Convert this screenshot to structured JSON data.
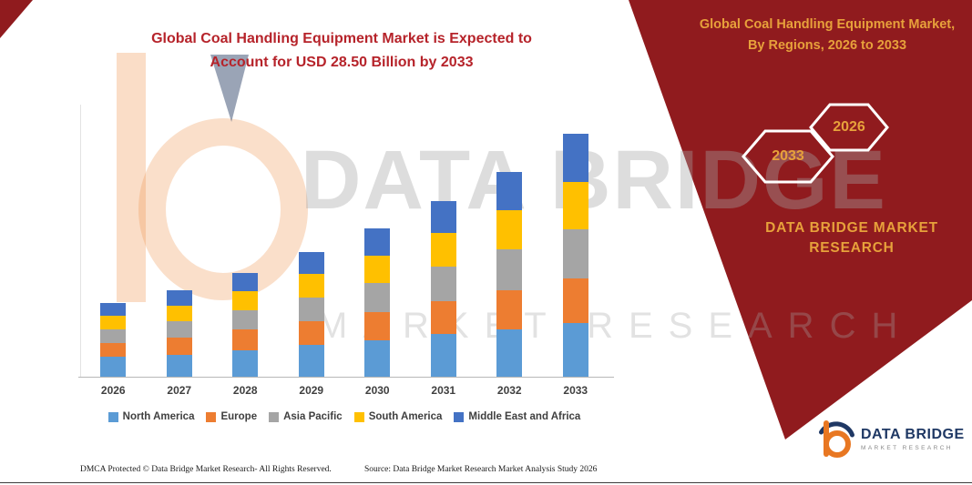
{
  "colors": {
    "ribbon": "#901b1e",
    "gold": "#e7a13b",
    "title": "#b6232a"
  },
  "header": {
    "title_line1": "Global Coal Handling Equipment Market is Expected to",
    "title_line2": "Account for USD 28.50 Billion by 2033"
  },
  "band": {
    "title": "Global Coal Handling Equipment Market, By Regions, 2026 to 2033",
    "hexagon_left_year": "2033",
    "hexagon_right_year": "2026",
    "brand_line1": "DATA BRIDGE MARKET",
    "brand_line2": "RESEARCH"
  },
  "watermark": {
    "line1": "DATA BRIDGE",
    "line2": "MARKET RESEARCH"
  },
  "chart_data": {
    "type": "bar",
    "stacked": true,
    "title": "Global Coal Handling Equipment Market is Expected to Account for USD 28.50 Billion by 2033",
    "unit": "USD Billion",
    "categories": [
      "2026",
      "2027",
      "2028",
      "2029",
      "2030",
      "2031",
      "2032",
      "2033"
    ],
    "series": [
      {
        "name": "North America",
        "color": "#5B9BD5",
        "values": [
          2.3,
          2.6,
          3.1,
          3.7,
          4.3,
          5.0,
          5.6,
          6.3
        ]
      },
      {
        "name": "Europe",
        "color": "#ED7D31",
        "values": [
          1.7,
          2.0,
          2.4,
          2.8,
          3.3,
          3.9,
          4.5,
          5.2
        ]
      },
      {
        "name": "Asia Pacific",
        "color": "#A5A5A5",
        "values": [
          1.6,
          1.9,
          2.3,
          2.8,
          3.4,
          4.0,
          4.8,
          5.8
        ]
      },
      {
        "name": "South America",
        "color": "#FFC000",
        "values": [
          1.5,
          1.8,
          2.2,
          2.7,
          3.2,
          3.9,
          4.6,
          5.5
        ]
      },
      {
        "name": "Middle East and Africa",
        "color": "#4472C4",
        "values": [
          1.5,
          1.8,
          2.2,
          2.6,
          3.2,
          3.8,
          4.5,
          5.7
        ]
      }
    ],
    "totals": [
      8.6,
      10.1,
      12.2,
      14.6,
      17.4,
      20.6,
      24.0,
      28.5
    ],
    "ylim": [
      0,
      32
    ],
    "xlabel": "",
    "ylabel": "",
    "grid": false,
    "legend_position": "bottom"
  },
  "footer": {
    "dmca": "DMCA Protected © Data Bridge Market Research-  All Rights Reserved.",
    "source": "Source: Data Bridge Market Research  Market Analysis Study 2026"
  },
  "logo": {
    "name": "DATA BRIDGE",
    "subtitle": "MARKET RESEARCH",
    "navy": "#1f3864",
    "orange": "#e87722"
  }
}
